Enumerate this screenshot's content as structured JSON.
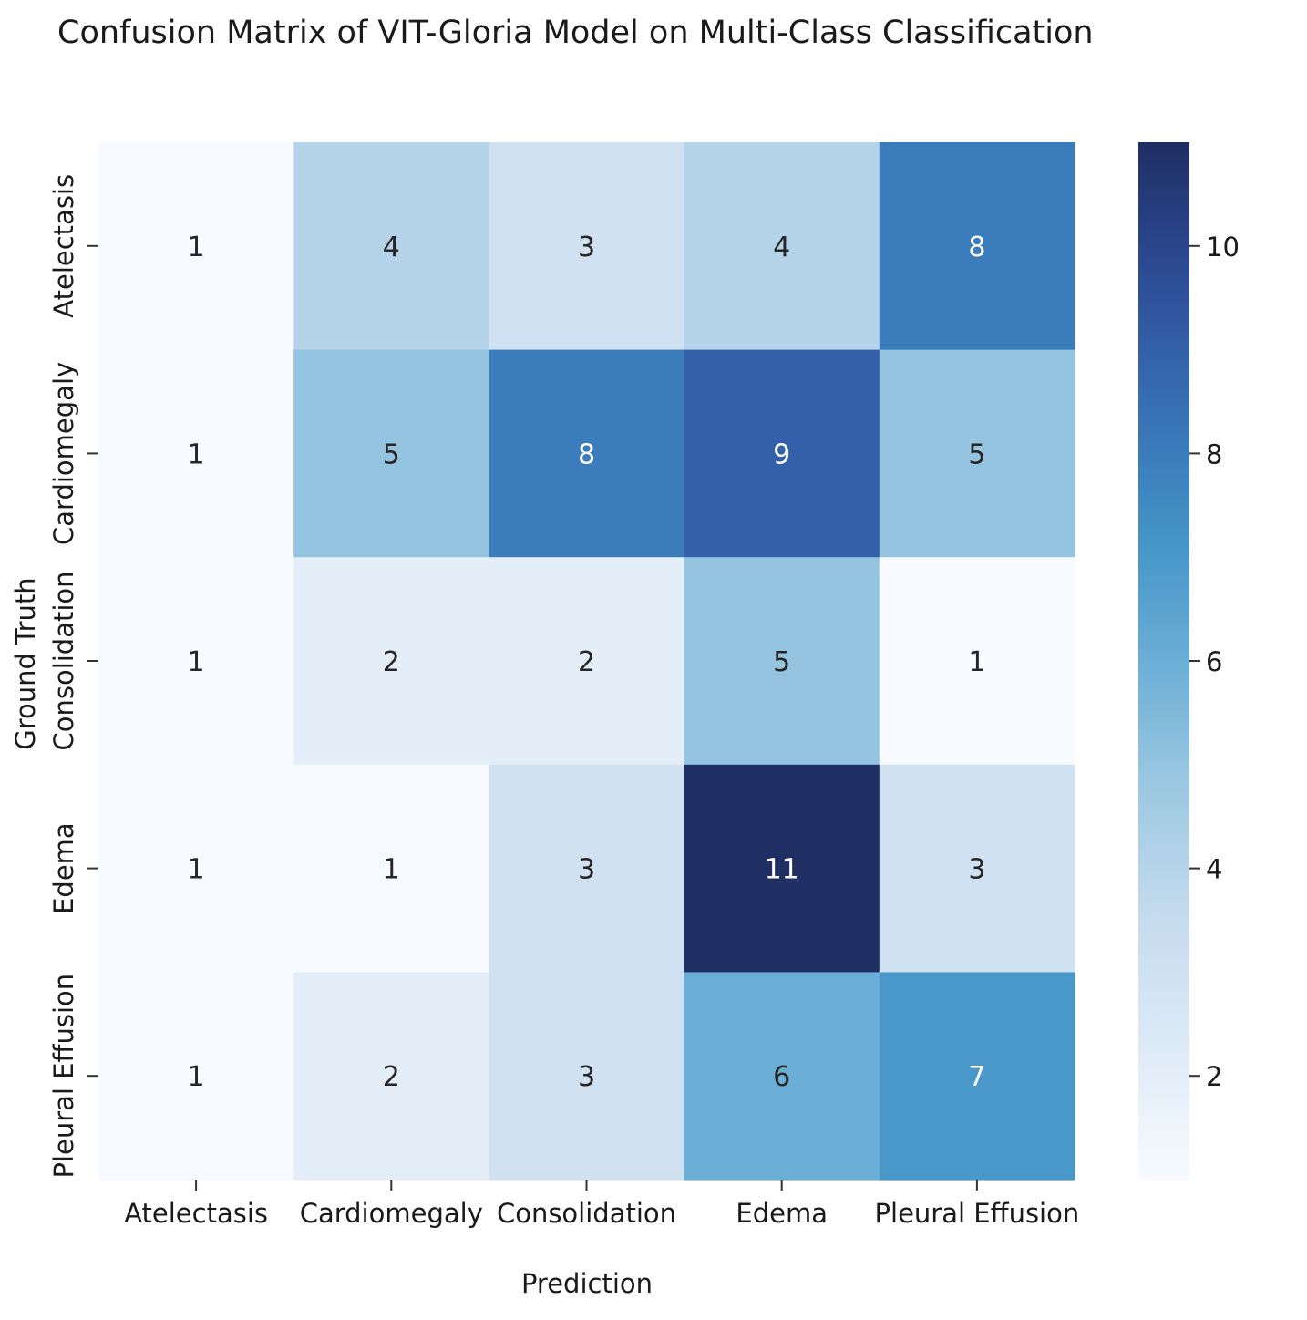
{
  "chart_data": {
    "type": "heatmap",
    "title": "Confusion Matrix of VIT-Gloria Model on Multi-Class Classification",
    "xlabel": "Prediction",
    "ylabel": "Ground Truth",
    "x_categories": [
      "Atelectasis",
      "Cardiomegaly",
      "Consolidation",
      "Edema",
      "Pleural Effusion"
    ],
    "y_categories": [
      "Atelectasis",
      "Cardiomegaly",
      "Consolidation",
      "Edema",
      "Pleural Effusion"
    ],
    "values": [
      [
        1,
        4,
        3,
        4,
        8
      ],
      [
        1,
        5,
        8,
        9,
        5
      ],
      [
        1,
        2,
        2,
        5,
        1
      ],
      [
        1,
        1,
        3,
        11,
        3
      ],
      [
        1,
        2,
        3,
        6,
        7
      ]
    ],
    "colormap": "Blues",
    "colorbar": {
      "range": [
        1,
        11
      ],
      "ticks": [
        2,
        4,
        6,
        8,
        10
      ],
      "low_color": "#f7fbff",
      "high_color": "#1f2e63"
    },
    "annotations": true
  }
}
